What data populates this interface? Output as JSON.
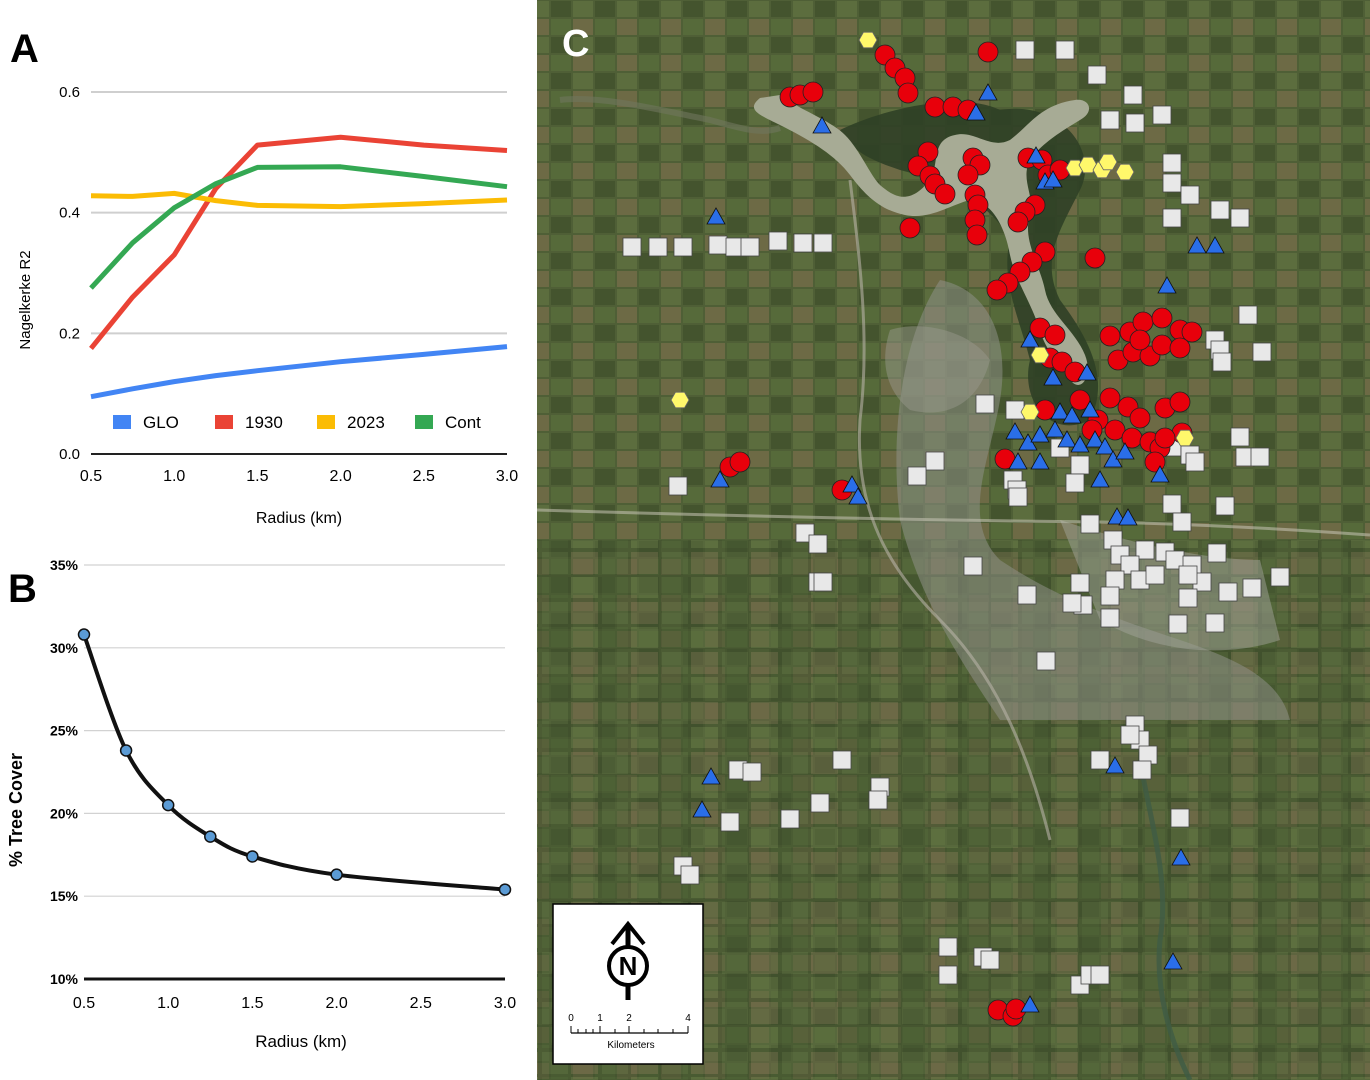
{
  "panels": {
    "a": "A",
    "b": "B",
    "c": "C"
  },
  "chart_data": [
    {
      "type": "line",
      "panel": "A",
      "xlabel": "Radius (km)",
      "ylabel": "Nagelkerke R2",
      "xlim": [
        0.5,
        3.0
      ],
      "ylim": [
        0.0,
        0.6
      ],
      "xticks": [
        "0.5",
        "1.0",
        "1.5",
        "2.0",
        "2.5",
        "3.0"
      ],
      "yticks": [
        "0.0",
        "0.2",
        "0.4",
        "0.6"
      ],
      "grid": true,
      "legend_position": "bottom",
      "series": [
        {
          "name": "GLO",
          "color": "#4285f4",
          "x": [
            0.5,
            0.75,
            1.0,
            1.25,
            1.5,
            2.0,
            2.5,
            3.0
          ],
          "y": [
            0.095,
            0.108,
            0.12,
            0.13,
            0.138,
            0.153,
            0.165,
            0.178
          ]
        },
        {
          "name": "1930",
          "color": "#ea4335",
          "x": [
            0.5,
            0.75,
            1.0,
            1.25,
            1.5,
            2.0,
            2.5,
            3.0
          ],
          "y": [
            0.175,
            0.26,
            0.33,
            0.44,
            0.512,
            0.525,
            0.512,
            0.503
          ]
        },
        {
          "name": "2023",
          "color": "#fbbc04",
          "x": [
            0.5,
            0.75,
            1.0,
            1.25,
            1.5,
            2.0,
            2.5,
            3.0
          ],
          "y": [
            0.428,
            0.427,
            0.432,
            0.42,
            0.412,
            0.41,
            0.415,
            0.421
          ]
        },
        {
          "name": "Cont",
          "color": "#34a853",
          "x": [
            0.5,
            0.75,
            1.0,
            1.25,
            1.5,
            2.0,
            2.5,
            3.0
          ],
          "y": [
            0.275,
            0.35,
            0.408,
            0.448,
            0.475,
            0.476,
            0.46,
            0.443
          ]
        }
      ]
    },
    {
      "type": "line",
      "panel": "B",
      "xlabel": "Radius (km)",
      "ylabel": "% Tree Cover",
      "xlim": [
        0.5,
        3.0
      ],
      "ylim": [
        10,
        35
      ],
      "xticks": [
        "0.5",
        "1.0",
        "1.5",
        "2.0",
        "2.5",
        "3.0"
      ],
      "yticks": [
        "10%",
        "15%",
        "20%",
        "25%",
        "30%",
        "35%"
      ],
      "grid": true,
      "series": [
        {
          "name": "",
          "color": "#111111",
          "marker_color": "#5b9bd5",
          "x": [
            0.5,
            0.75,
            1.0,
            1.25,
            1.5,
            2.0,
            3.0
          ],
          "y": [
            30.8,
            23.8,
            20.5,
            18.6,
            17.4,
            16.3,
            15.4
          ]
        }
      ]
    }
  ],
  "map": {
    "scale_bar": {
      "ticks": [
        "0",
        "1",
        "2",
        "4"
      ],
      "unit": "Kilometers"
    },
    "north_arrow": "N",
    "marker_colors": {
      "circle": "#e8000b",
      "triangle": "#2a6ee8",
      "hexagon": "#fff86b",
      "square": "#e8e8e8"
    }
  }
}
